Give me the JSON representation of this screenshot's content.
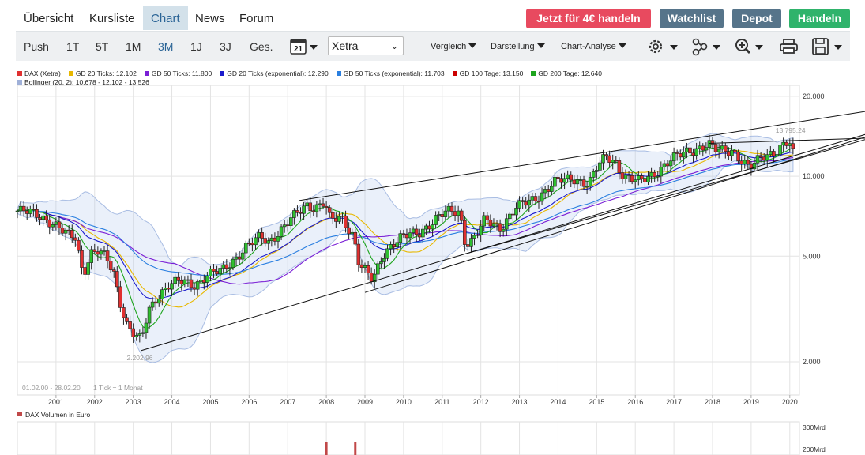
{
  "nav": {
    "tabs": [
      {
        "label": "Übersicht"
      },
      {
        "label": "Kursliste"
      },
      {
        "label": "Chart"
      },
      {
        "label": "News"
      },
      {
        "label": "Forum"
      }
    ],
    "cta": {
      "trade_offer": "Jetzt für 4€ handeln",
      "watchlist": "Watchlist",
      "depot": "Depot",
      "handeln": "Handeln"
    },
    "colors": {
      "trade_offer": "#e84a5f",
      "watchlist": "#56748a",
      "depot": "#56748a",
      "handeln": "#2fb36b",
      "active_tab_bg": "#d3e1ea"
    }
  },
  "toolbar": {
    "ranges": [
      "Push",
      "1T",
      "5T",
      "1M",
      "3M",
      "1J",
      "3J",
      "Ges."
    ],
    "active_range": "3M",
    "calendar_day": "21",
    "exchange": "Xetra",
    "menus": {
      "compare": "Vergleich",
      "display": "Darstellung",
      "analysis": "Chart-Analyse"
    },
    "icons": [
      "calendar-icon",
      "settings-icon",
      "indicators-icon",
      "zoom-icon",
      "print-icon",
      "save-icon"
    ]
  },
  "legend": [
    {
      "label": "DAX (Xetra)",
      "color": "#e03030"
    },
    {
      "label": "GD 20 Ticks: 12.102",
      "color": "#e8b800"
    },
    {
      "label": "GD 50 Ticks: 11.800",
      "color": "#7a1fd6"
    },
    {
      "label": "GD 20 Ticks (exponential): 12.290",
      "color": "#1a1acc"
    },
    {
      "label": "GD 50 Ticks (exponential): 11.703",
      "color": "#2a7fe0"
    },
    {
      "label": "GD 100 Tage: 13.150",
      "color": "#cc0000"
    },
    {
      "label": "GD 200 Tage: 12.640",
      "color": "#1ea51e"
    },
    {
      "label": "Bollinger (20, 2): 10.678 - 12.102 - 13.526",
      "color": "#9fb0d8"
    }
  ],
  "chart_data": {
    "type": "candlestick",
    "instrument": "DAX (Xetra)",
    "period_label": "01.02.00 - 28.02.20",
    "tick_label": "1 Tick = 1 Monat",
    "scale": "log",
    "ylim": [
      1500,
      22000
    ],
    "yticks": [
      {
        "value": 20000,
        "label": "20.000"
      },
      {
        "value": 10000,
        "label": "10.000"
      },
      {
        "value": 5000,
        "label": "5.000"
      },
      {
        "value": 2000,
        "label": "2.000"
      }
    ],
    "xlim": [
      2000.0,
      2020.25
    ],
    "xticks": [
      "2001",
      "2002",
      "2003",
      "2004",
      "2005",
      "2006",
      "2007",
      "2008",
      "2009",
      "2010",
      "2011",
      "2012",
      "2013",
      "2014",
      "2015",
      "2016",
      "2017",
      "2018",
      "2019",
      "2020"
    ],
    "annotations": [
      {
        "text": "2.202,96",
        "x": 2003.2,
        "y": 2202.96
      },
      {
        "text": "13.795,24",
        "x": 2020.0,
        "y": 13795.24
      }
    ],
    "close_path": [
      [
        2000.0,
        7400
      ],
      [
        2000.3,
        7300
      ],
      [
        2000.6,
        7100
      ],
      [
        2000.9,
        6700
      ],
      [
        2001.1,
        6300
      ],
      [
        2001.3,
        6000
      ],
      [
        2001.5,
        5900
      ],
      [
        2001.7,
        4300
      ],
      [
        2001.9,
        5150
      ],
      [
        2002.1,
        5200
      ],
      [
        2002.3,
        4900
      ],
      [
        2002.5,
        4300
      ],
      [
        2002.7,
        3200
      ],
      [
        2002.85,
        2750
      ],
      [
        2003.05,
        2500
      ],
      [
        2003.2,
        2400
      ],
      [
        2003.4,
        3100
      ],
      [
        2003.6,
        3500
      ],
      [
        2003.9,
        3900
      ],
      [
        2004.2,
        4000
      ],
      [
        2004.6,
        3900
      ],
      [
        2004.9,
        4250
      ],
      [
        2005.3,
        4400
      ],
      [
        2005.6,
        4850
      ],
      [
        2005.9,
        5400
      ],
      [
        2006.3,
        5900
      ],
      [
        2006.5,
        5650
      ],
      [
        2006.8,
        6250
      ],
      [
        2007.1,
        6900
      ],
      [
        2007.5,
        7800
      ],
      [
        2007.7,
        7650
      ],
      [
        2007.95,
        8000
      ],
      [
        2008.1,
        6800
      ],
      [
        2008.4,
        6950
      ],
      [
        2008.7,
        6000
      ],
      [
        2008.85,
        4700
      ],
      [
        2009.05,
        4300
      ],
      [
        2009.2,
        4000
      ],
      [
        2009.45,
        5000
      ],
      [
        2009.7,
        5600
      ],
      [
        2009.95,
        5900
      ],
      [
        2010.4,
        6100
      ],
      [
        2010.8,
        6900
      ],
      [
        2011.1,
        7300
      ],
      [
        2011.45,
        7350
      ],
      [
        2011.6,
        5600
      ],
      [
        2011.8,
        5800
      ],
      [
        2012.1,
        6800
      ],
      [
        2012.5,
        6400
      ],
      [
        2012.9,
        7600
      ],
      [
        2013.4,
        8200
      ],
      [
        2013.9,
        9500
      ],
      [
        2014.4,
        9800
      ],
      [
        2014.8,
        9400
      ],
      [
        2015.0,
        10700
      ],
      [
        2015.25,
        11900
      ],
      [
        2015.5,
        11300
      ],
      [
        2015.7,
        10000
      ],
      [
        2016.1,
        9500
      ],
      [
        2016.5,
        10300
      ],
      [
        2016.9,
        11400
      ],
      [
        2017.3,
        12400
      ],
      [
        2017.9,
        13100
      ],
      [
        2018.1,
        12500
      ],
      [
        2018.5,
        12600
      ],
      [
        2018.95,
        10600
      ],
      [
        2019.3,
        12000
      ],
      [
        2019.6,
        12400
      ],
      [
        2019.9,
        13200
      ],
      [
        2020.0,
        13200
      ],
      [
        2020.1,
        11900
      ]
    ],
    "trendlines": [
      {
        "from": [
          2003.2,
          2202.96
        ],
        "to": [
          2020.25,
          13600
        ]
      },
      {
        "from": [
          2007.3,
          8100
        ],
        "to": [
          2020.25,
          16500
        ]
      },
      {
        "from": [
          2009.0,
          3650
        ],
        "to": [
          2020.25,
          13300
        ]
      },
      {
        "from": [
          2011.6,
          5100
        ],
        "to": [
          2020.25,
          13000
        ]
      },
      {
        "from": [
          2017.9,
          13300
        ],
        "to": [
          2020.25,
          13000
        ]
      }
    ],
    "volume_panel": {
      "title": "DAX Volumen in Euro",
      "yticks": [
        "300Mrd",
        "200Mrd"
      ],
      "spikes": [
        {
          "x": 2008.0
        },
        {
          "x": 2008.75
        }
      ]
    }
  }
}
